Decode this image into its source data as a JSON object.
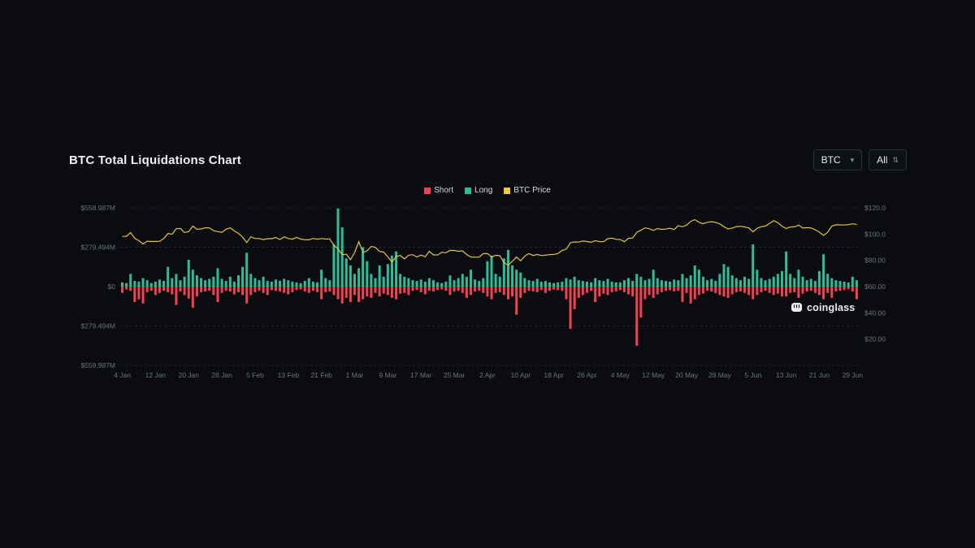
{
  "header": {
    "title": "BTC Total Liquidations Chart"
  },
  "controls": {
    "symbol_select": {
      "value": "BTC",
      "caret": "▾"
    },
    "range_select": {
      "value": "All",
      "caret": "⇅"
    }
  },
  "watermark": {
    "text": "coinglass"
  },
  "chart_data": {
    "type": "bar",
    "title": "BTC Total Liquidations Chart",
    "subtype": "mirrored daily bars (Long up, Short down) with BTC price line on right axis",
    "colors": {
      "short": "#f1434f",
      "long": "#2ebd9b",
      "price": "#e5c245",
      "grid": "#1f242b",
      "zero_line": "#2e333b",
      "label": "#6b7280"
    },
    "legend": [
      {
        "label": "Short",
        "color": "#f1434f"
      },
      {
        "label": "Long",
        "color": "#2ebd9b"
      },
      {
        "label": "BTC Price",
        "color": "#f2c53d"
      }
    ],
    "y_axis_left": {
      "unit": "$M",
      "tick_labels": [
        "$558.987M",
        "$279.494M",
        "$0",
        "$279.494M",
        "$558.987M"
      ],
      "max_abs": 558.987
    },
    "y_axis_right": {
      "unit": "$K",
      "tick_labels": [
        "$120.00K",
        "$100.00K",
        "$80.00K",
        "$60.00K",
        "$40.00K",
        "$20.00K"
      ],
      "min": 0,
      "max": 120
    },
    "x_axis": {
      "tick_labels": [
        "4 Jan",
        "12 Jan",
        "20 Jan",
        "28 Jan",
        "5 Feb",
        "13 Feb",
        "21 Feb",
        "1 Mar",
        "9 Mar",
        "17 Mar",
        "25 Mar",
        "2 Apr",
        "10 Apr",
        "18 Apr",
        "26 Apr",
        "4 May",
        "12 May",
        "20 May",
        "28 May",
        "5 Jun",
        "13 Jun",
        "21 Jun",
        "29 Jun"
      ],
      "tick_interval_days": 8
    },
    "series": [
      {
        "name": "Short",
        "unit": "$M",
        "direction": "down",
        "values": [
          45,
          20,
          30,
          110,
          90,
          120,
          40,
          30,
          60,
          45,
          30,
          40,
          55,
          130,
          35,
          60,
          85,
          150,
          70,
          40,
          35,
          30,
          60,
          110,
          45,
          30,
          35,
          55,
          40,
          60,
          120,
          60,
          40,
          30,
          45,
          60,
          25,
          30,
          35,
          45,
          55,
          40,
          25,
          20,
          35,
          45,
          30,
          40,
          90,
          40,
          35,
          60,
          90,
          120,
          80,
          110,
          60,
          110,
          90,
          70,
          80,
          45,
          70,
          50,
          60,
          80,
          90,
          50,
          45,
          60,
          30,
          25,
          40,
          55,
          30,
          35,
          25,
          20,
          30,
          60,
          35,
          30,
          45,
          80,
          60,
          35,
          30,
          45,
          70,
          90,
          45,
          40,
          60,
          90,
          70,
          200,
          80,
          45,
          30,
          35,
          40,
          25,
          45,
          30,
          20,
          25,
          30,
          90,
          300,
          160,
          80,
          60,
          45,
          30,
          110,
          70,
          50,
          60,
          40,
          35,
          25,
          40,
          55,
          70,
          420,
          220,
          90,
          60,
          80,
          55,
          40,
          30,
          25,
          35,
          30,
          110,
          45,
          120,
          90,
          60,
          50,
          30,
          35,
          45,
          60,
          70,
          80,
          55,
          40,
          35,
          45,
          60,
          90,
          60,
          40,
          30,
          45,
          60,
          50,
          70,
          70,
          45,
          40,
          80,
          50,
          35,
          30,
          45,
          60,
          90,
          45,
          80,
          35,
          30,
          25,
          20,
          35,
          90
        ]
      },
      {
        "name": "Long",
        "unit": "$M",
        "direction": "up",
        "values": [
          30,
          25,
          90,
          40,
          35,
          60,
          45,
          25,
          35,
          50,
          40,
          140,
          60,
          90,
          45,
          70,
          190,
          120,
          80,
          60,
          45,
          55,
          70,
          130,
          55,
          40,
          70,
          35,
          80,
          140,
          240,
          90,
          60,
          45,
          70,
          40,
          35,
          50,
          40,
          55,
          45,
          35,
          30,
          25,
          40,
          60,
          35,
          30,
          120,
          60,
          45,
          300,
          555,
          420,
          200,
          150,
          90,
          130,
          280,
          180,
          90,
          60,
          150,
          70,
          160,
          220,
          250,
          90,
          70,
          60,
          45,
          40,
          50,
          35,
          60,
          45,
          30,
          25,
          35,
          80,
          45,
          60,
          90,
          70,
          120,
          50,
          40,
          60,
          180,
          220,
          90,
          70,
          200,
          260,
          150,
          120,
          100,
          60,
          45,
          40,
          55,
          35,
          40,
          30,
          25,
          30,
          35,
          60,
          50,
          70,
          45,
          40,
          35,
          30,
          60,
          45,
          40,
          55,
          35,
          30,
          30,
          45,
          60,
          40,
          90,
          70,
          45,
          55,
          120,
          60,
          45,
          40,
          35,
          50,
          45,
          90,
          60,
          80,
          150,
          120,
          70,
          45,
          55,
          40,
          90,
          160,
          140,
          80,
          60,
          45,
          70,
          55,
          300,
          120,
          60,
          45,
          55,
          70,
          90,
          110,
          250,
          90,
          60,
          120,
          70,
          45,
          55,
          40,
          110,
          230,
          90,
          60,
          45,
          40,
          35,
          30,
          70,
          45
        ]
      },
      {
        "name": "BTC Price",
        "unit": "$K",
        "axis": "right",
        "values": [
          98.2,
          98.3,
          101.2,
          96.8,
          95.0,
          92.5,
          94.6,
          94.3,
          94.4,
          94.5,
          96.6,
          100.4,
          99.9,
          104.1,
          104.3,
          101.2,
          101.9,
          106.1,
          103.7,
          103.9,
          104.8,
          104.7,
          102.6,
          101.9,
          101.3,
          103.7,
          104.7,
          102.4,
          100.6,
          97.7,
          93.5,
          97.9,
          96.6,
          96.6,
          95.8,
          96.5,
          96.5,
          97.4,
          95.8,
          97.9,
          96.6,
          96.1,
          97.5,
          96.2,
          95.7,
          95.6,
          96.7,
          96.1,
          96.6,
          96.3,
          96.3,
          91.5,
          88.6,
          84.3,
          84.7,
          80.5,
          86.0,
          94.2,
          86.0,
          87.2,
          90.6,
          89.9,
          86.8,
          86.2,
          82.8,
          78.6,
          82.9,
          83.7,
          81.1,
          83.9,
          84.3,
          82.6,
          84.0,
          82.7,
          86.9,
          84.2,
          84.0,
          86.1,
          85.8,
          87.5,
          87.5,
          86.9,
          87.2,
          84.4,
          82.6,
          82.4,
          82.5,
          85.1,
          85.2,
          82.5,
          83.8,
          83.5,
          78.2,
          76.3,
          79.2,
          82.6,
          79.6,
          83.2,
          85.2,
          83.7,
          84.5,
          83.6,
          84.0,
          84.4,
          84.5,
          85.2,
          87.5,
          88.5,
          93.4,
          94.0,
          93.9,
          94.7,
          94.3,
          93.8,
          95.0,
          94.2,
          94.2,
          96.5,
          96.9,
          96.0,
          95.9,
          94.2,
          96.8,
          97.0,
          101.3,
          103.0,
          104.7,
          104.1,
          102.8,
          104.2,
          103.6,
          103.8,
          104.5,
          103.5,
          106.4,
          105.6,
          106.8,
          109.7,
          111.0,
          109.0,
          107.9,
          109.0,
          109.4,
          108.9,
          107.8,
          105.6,
          103.9,
          104.6,
          105.7,
          105.9,
          105.4,
          104.7,
          101.6,
          104.4,
          105.6,
          106.1,
          108.2,
          110.2,
          108.7,
          105.9,
          104.3,
          105.4,
          105.5,
          106.8,
          104.6,
          104.9,
          104.7,
          103.3,
          101.5,
          99.0,
          101.4,
          106.1,
          107.1,
          107.0,
          106.9,
          107.2,
          107.8,
          107.4
        ]
      }
    ]
  }
}
